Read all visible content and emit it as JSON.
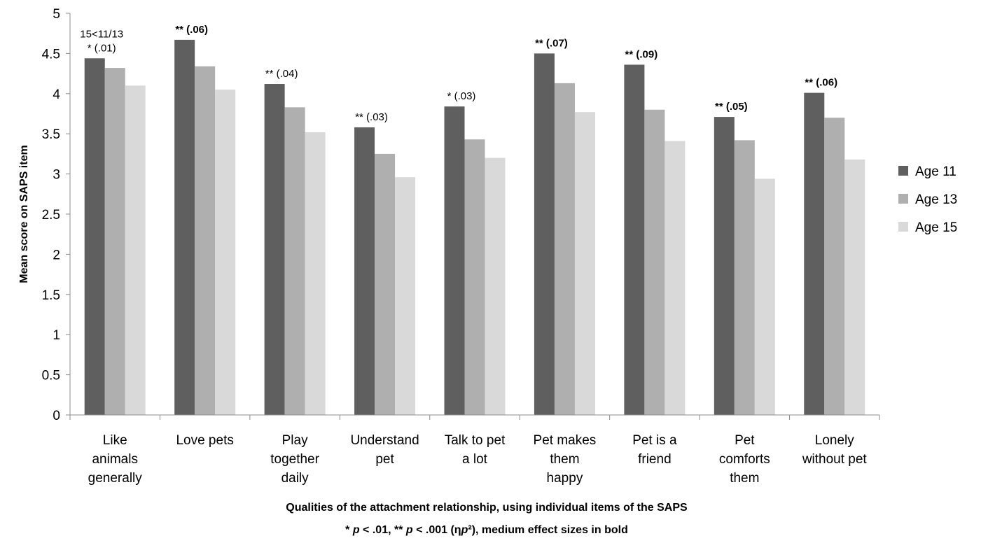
{
  "chart_data": {
    "type": "bar",
    "title": "",
    "xlabel": "Qualities of the attachment relationship, using individual items of the SAPS",
    "xlabel_note": "* p < .01, ** p < .001 (ηp²), medium effect sizes in bold",
    "ylabel": "Mean score on SAPS item",
    "ylim": [
      0,
      5
    ],
    "yticks": [
      "0",
      "0.5",
      "1",
      "1.5",
      "2",
      "2.5",
      "3",
      "3.5",
      "4",
      "4.5",
      "5"
    ],
    "grid": false,
    "legend_position": "right",
    "categories": [
      [
        "Like",
        "animals",
        "generally"
      ],
      [
        "Love pets"
      ],
      [
        "Play",
        "together",
        "daily"
      ],
      [
        "Understand",
        "pet"
      ],
      [
        "Talk to pet",
        "a lot"
      ],
      [
        "Pet makes",
        "them",
        "happy"
      ],
      [
        "Pet is a",
        "friend"
      ],
      [
        "Pet",
        "comforts",
        "them"
      ],
      [
        "Lonely",
        "without pet"
      ]
    ],
    "series": [
      {
        "name": "Age 11",
        "color": "#5f5f5f",
        "values": [
          4.44,
          4.67,
          4.12,
          3.58,
          3.84,
          4.5,
          4.36,
          3.71,
          4.01
        ]
      },
      {
        "name": "Age 13",
        "color": "#afafaf",
        "values": [
          4.32,
          4.34,
          3.83,
          3.25,
          3.43,
          4.13,
          3.8,
          3.42,
          3.7
        ]
      },
      {
        "name": "Age 15",
        "color": "#d9d9d9",
        "values": [
          4.1,
          4.05,
          3.52,
          2.96,
          3.2,
          3.77,
          3.41,
          2.94,
          3.18
        ]
      }
    ],
    "annotations": [
      {
        "lines": [
          "15<11/13",
          "* (.01)"
        ],
        "bold": false
      },
      {
        "lines": [
          "** (.06)"
        ],
        "bold": true
      },
      {
        "lines": [
          "** (.04)"
        ],
        "bold": false
      },
      {
        "lines": [
          "** (.03)"
        ],
        "bold": false
      },
      {
        "lines": [
          "* (.03)"
        ],
        "bold": false
      },
      {
        "lines": [
          "** (.07)"
        ],
        "bold": true
      },
      {
        "lines": [
          "** (.09)"
        ],
        "bold": true
      },
      {
        "lines": [
          "** (.05)"
        ],
        "bold": true
      },
      {
        "lines": [
          "** (.06)"
        ],
        "bold": true
      }
    ]
  }
}
